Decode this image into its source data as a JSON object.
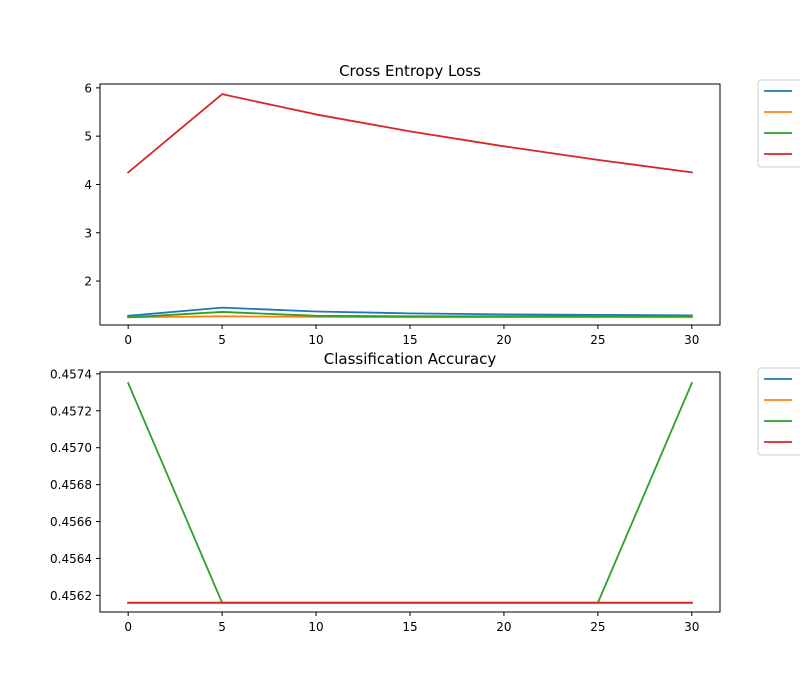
{
  "chart_data": [
    {
      "type": "line",
      "title": "Cross Entropy Loss",
      "xlabel": "",
      "ylabel": "",
      "x": [
        0,
        5,
        10,
        15,
        20,
        25,
        30
      ],
      "xlim": [
        -1.5,
        31.5
      ],
      "ylim": [
        1.09,
        6.08
      ],
      "xticks": [
        0,
        5,
        10,
        15,
        20,
        25,
        30
      ],
      "yticks": [
        2,
        3,
        4,
        5,
        6
      ],
      "grid": false,
      "legend": "outside-right",
      "series": [
        {
          "color": "#1f77b4",
          "values": [
            1.28,
            1.45,
            1.37,
            1.33,
            1.31,
            1.3,
            1.29
          ]
        },
        {
          "color": "#ff7f0e",
          "values": [
            1.25,
            1.27,
            1.26,
            1.25,
            1.25,
            1.25,
            1.25
          ]
        },
        {
          "color": "#2ca02c",
          "values": [
            1.25,
            1.36,
            1.28,
            1.27,
            1.27,
            1.27,
            1.27
          ]
        },
        {
          "color": "#d62728",
          "values": [
            4.25,
            5.87,
            5.45,
            5.1,
            4.79,
            4.51,
            4.25
          ]
        }
      ]
    },
    {
      "type": "line",
      "title": "Classification Accuracy",
      "xlabel": "",
      "ylabel": "",
      "x": [
        0,
        5,
        10,
        15,
        20,
        25,
        30
      ],
      "xlim": [
        -1.5,
        31.5
      ],
      "ylim": [
        0.45611,
        0.45741
      ],
      "xticks": [
        0,
        5,
        10,
        15,
        20,
        25,
        30
      ],
      "yticks": [
        0.4562,
        0.4564,
        0.4566,
        0.4568,
        0.457,
        0.4572,
        0.4574
      ],
      "ytick_labels": [
        "0.4562",
        "0.4564",
        "0.4566",
        "0.4568",
        "0.4570",
        "0.4572",
        "0.4574"
      ],
      "grid": false,
      "legend": "outside-right",
      "series": [
        {
          "color": "#1f77b4",
          "values": [
            0.45616,
            0.45616,
            0.45616,
            0.45616,
            0.45616,
            0.45616,
            0.45616
          ]
        },
        {
          "color": "#ff7f0e",
          "values": [
            0.45616,
            0.45616,
            0.45616,
            0.45616,
            0.45616,
            0.45616,
            0.45616
          ]
        },
        {
          "color": "#2ca02c",
          "values": [
            0.45735,
            0.45616,
            0.45616,
            0.45616,
            0.45616,
            0.45616,
            0.45735
          ]
        },
        {
          "color": "#d62728",
          "values": [
            0.45616,
            0.45616,
            0.45616,
            0.45616,
            0.45616,
            0.45616,
            0.45616
          ]
        }
      ]
    }
  ]
}
